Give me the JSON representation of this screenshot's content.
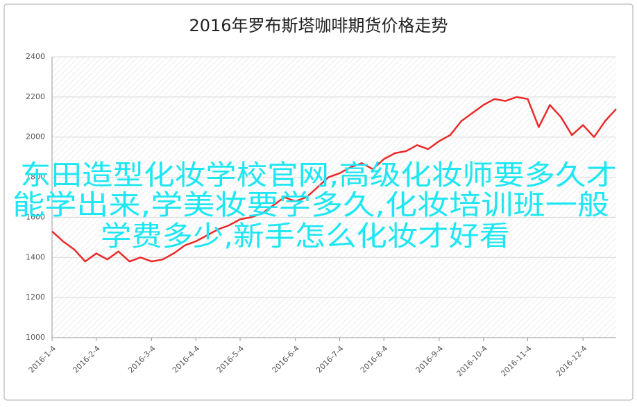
{
  "chart_data": {
    "type": "line",
    "title": "2016年罗布斯塔咖啡期货价格走势",
    "categories": [
      "2016-1-4",
      null,
      null,
      null,
      "2016-2-4",
      null,
      null,
      null,
      null,
      "2016-3-4",
      null,
      null,
      null,
      "2016-4-4",
      null,
      null,
      null,
      "2016-5-4",
      null,
      null,
      null,
      null,
      "2016-6-4",
      null,
      null,
      null,
      "2016-7-4",
      null,
      null,
      null,
      "2016-8-4",
      null,
      null,
      null,
      null,
      "2016-9-4",
      null,
      null,
      null,
      "2016-10-4",
      null,
      null,
      null,
      "2016-11-4",
      null,
      null,
      null,
      null,
      "2016-12-4",
      null,
      null,
      null
    ],
    "values": [
      1530,
      1480,
      1440,
      1380,
      1420,
      1390,
      1430,
      1380,
      1400,
      1380,
      1390,
      1420,
      1460,
      1480,
      1510,
      1540,
      1560,
      1590,
      1600,
      1620,
      1660,
      1700,
      1680,
      1700,
      1750,
      1800,
      1820,
      1850,
      1870,
      1840,
      1890,
      1920,
      1930,
      1960,
      1940,
      1980,
      2010,
      2080,
      2120,
      2160,
      2190,
      2180,
      2200,
      2190,
      2050,
      2160,
      2100,
      2010,
      2060,
      2000,
      2080,
      2140
    ],
    "color": "#ea2a2a",
    "ylim": [
      1000,
      2400
    ],
    "yticks": [
      1000,
      1200,
      1400,
      1600,
      1800,
      2000,
      2200,
      2400
    ],
    "grid": true,
    "annotations": [
      "东田造型化妆学校官网,高级化妆师要多久才",
      "能学出来,学美妆要学多久,化妆培训班一般",
      "学费多少,新手怎么化妆才好看"
    ]
  }
}
